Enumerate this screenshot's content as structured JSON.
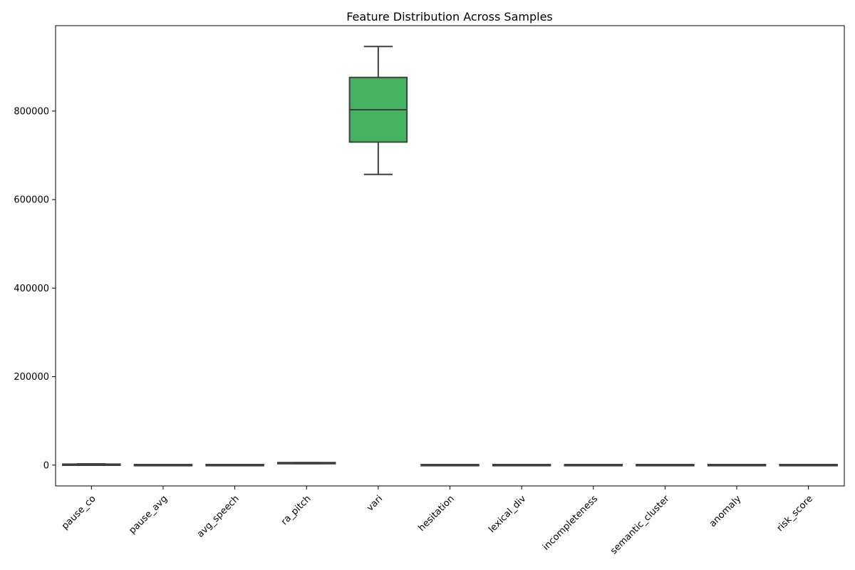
{
  "chart_data": {
    "type": "box",
    "title": "Feature Distribution Across Samples",
    "xlabel": "",
    "ylabel": "",
    "ylim": [
      -47000,
      993000
    ],
    "yticks": [
      0,
      200000,
      400000,
      600000,
      800000
    ],
    "ytick_labels": [
      "0",
      "200000",
      "400000",
      "600000",
      "800000"
    ],
    "grid": false,
    "legend": "none",
    "categories": [
      "pause_co",
      "pause_avg",
      "avg_speech",
      "ra_pitch",
      "vari",
      "hesitation",
      "lexical_div",
      "incompleteness",
      "semantic_cluster",
      "anomaly",
      "risk_score"
    ],
    "boxes": [
      {
        "name": "pause_co",
        "whisker_low": 0,
        "q1": 0,
        "median": 1000,
        "q3": 2000,
        "whisker_high": 3000,
        "color": "#3274a1"
      },
      {
        "name": "pause_avg",
        "whisker_low": 0,
        "q1": 0,
        "median": 0,
        "q3": 1,
        "whisker_high": 2,
        "color": "#e1812c"
      },
      {
        "name": "avg_speech",
        "whisker_low": 0,
        "q1": 0,
        "median": 0,
        "q3": 1,
        "whisker_high": 2,
        "color": "#3a923a"
      },
      {
        "name": "ra_pitch",
        "whisker_low": 3500,
        "q1": 4000,
        "median": 4500,
        "q3": 5000,
        "whisker_high": 5500,
        "color": "#c03d3e"
      },
      {
        "name": "vari",
        "whisker_low": 657000,
        "q1": 730000,
        "median": 803000,
        "q3": 876000,
        "whisker_high": 946000,
        "color": "#46b361"
      },
      {
        "name": "hesitation",
        "whisker_low": 0,
        "q1": 0,
        "median": 0,
        "q3": 1,
        "whisker_high": 2,
        "color": "#845b53"
      },
      {
        "name": "lexical_div",
        "whisker_low": 0,
        "q1": 0,
        "median": 0,
        "q3": 1,
        "whisker_high": 1,
        "color": "#d684bd"
      },
      {
        "name": "incompleteness",
        "whisker_low": 0,
        "q1": 0,
        "median": 0,
        "q3": 1,
        "whisker_high": 1,
        "color": "#7f7f7f"
      },
      {
        "name": "semantic_cluster",
        "whisker_low": 0,
        "q1": 0,
        "median": 1,
        "q3": 2,
        "whisker_high": 3,
        "color": "#a9aa35"
      },
      {
        "name": "anomaly",
        "whisker_low": 0,
        "q1": 0,
        "median": 0,
        "q3": 1,
        "whisker_high": 1,
        "color": "#2eaebc"
      },
      {
        "name": "risk_score",
        "whisker_low": 0,
        "q1": 0,
        "median": 0,
        "q3": 1,
        "whisker_high": 1,
        "color": "#3274a1"
      }
    ]
  }
}
